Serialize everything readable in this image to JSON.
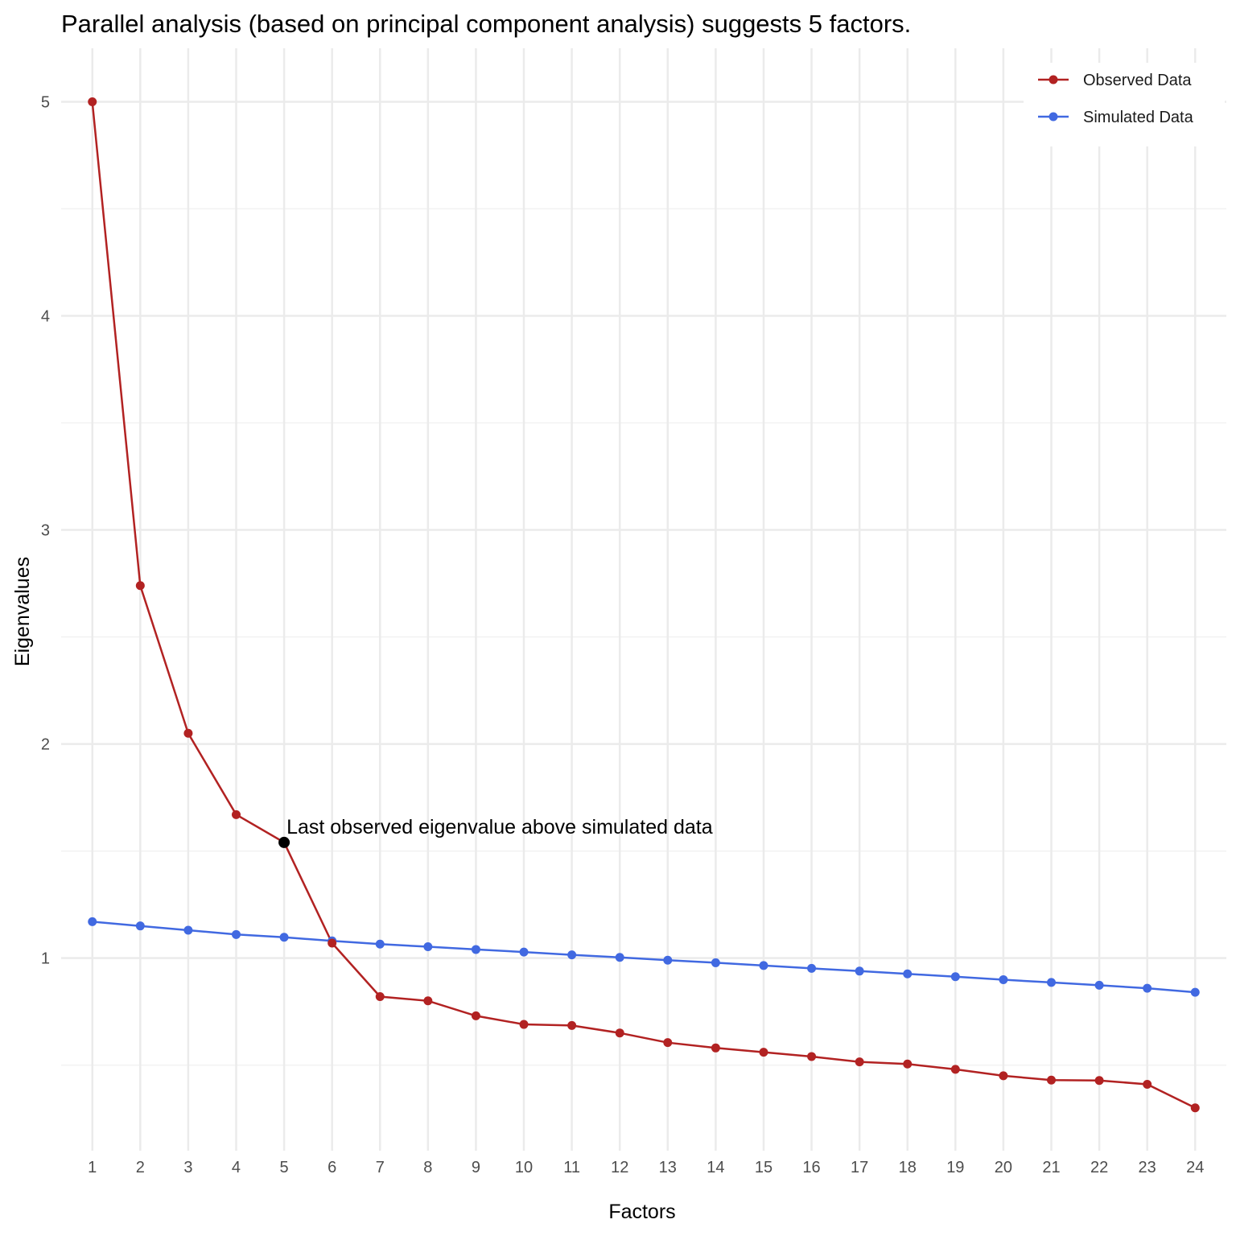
{
  "chart_data": {
    "type": "line",
    "title": "Parallel analysis (based on principal component analysis) suggests 5 factors.",
    "xlabel": "Factors",
    "ylabel": "Eigenvalues",
    "x": [
      1,
      2,
      3,
      4,
      5,
      6,
      7,
      8,
      9,
      10,
      11,
      12,
      13,
      14,
      15,
      16,
      17,
      18,
      19,
      20,
      21,
      22,
      23,
      24
    ],
    "x_tick_labels": [
      "1",
      "2",
      "3",
      "4",
      "5",
      "6",
      "7",
      "8",
      "9",
      "10",
      "11",
      "12",
      "13",
      "14",
      "15",
      "16",
      "17",
      "18",
      "19",
      "20",
      "21",
      "22",
      "23",
      "24"
    ],
    "y_tick_labels": [
      "1",
      "2",
      "3",
      "4",
      "5"
    ],
    "y_ticks": [
      1,
      2,
      3,
      4,
      5
    ],
    "ylim": [
      0.1,
      5.25
    ],
    "grid": true,
    "legend_position": "top-right",
    "series": [
      {
        "name": "Observed Data",
        "color": "#B22222",
        "values": [
          5.0,
          2.74,
          2.05,
          1.67,
          1.54,
          1.07,
          0.82,
          0.8,
          0.73,
          0.69,
          0.685,
          0.65,
          0.605,
          0.58,
          0.56,
          0.54,
          0.515,
          0.505,
          0.48,
          0.45,
          0.43,
          0.428,
          0.41,
          0.3
        ]
      },
      {
        "name": "Simulated Data",
        "color": "#4169E1",
        "values": [
          1.17,
          1.15,
          1.13,
          1.11,
          1.097,
          1.08,
          1.065,
          1.053,
          1.04,
          1.028,
          1.015,
          1.003,
          0.99,
          0.978,
          0.965,
          0.952,
          0.939,
          0.926,
          0.913,
          0.899,
          0.886,
          0.873,
          0.859,
          0.84
        ]
      }
    ],
    "highlight": {
      "x": 5,
      "y": 1.54,
      "color": "#000000",
      "label": "Last observed eigenvalue above simulated data"
    }
  }
}
